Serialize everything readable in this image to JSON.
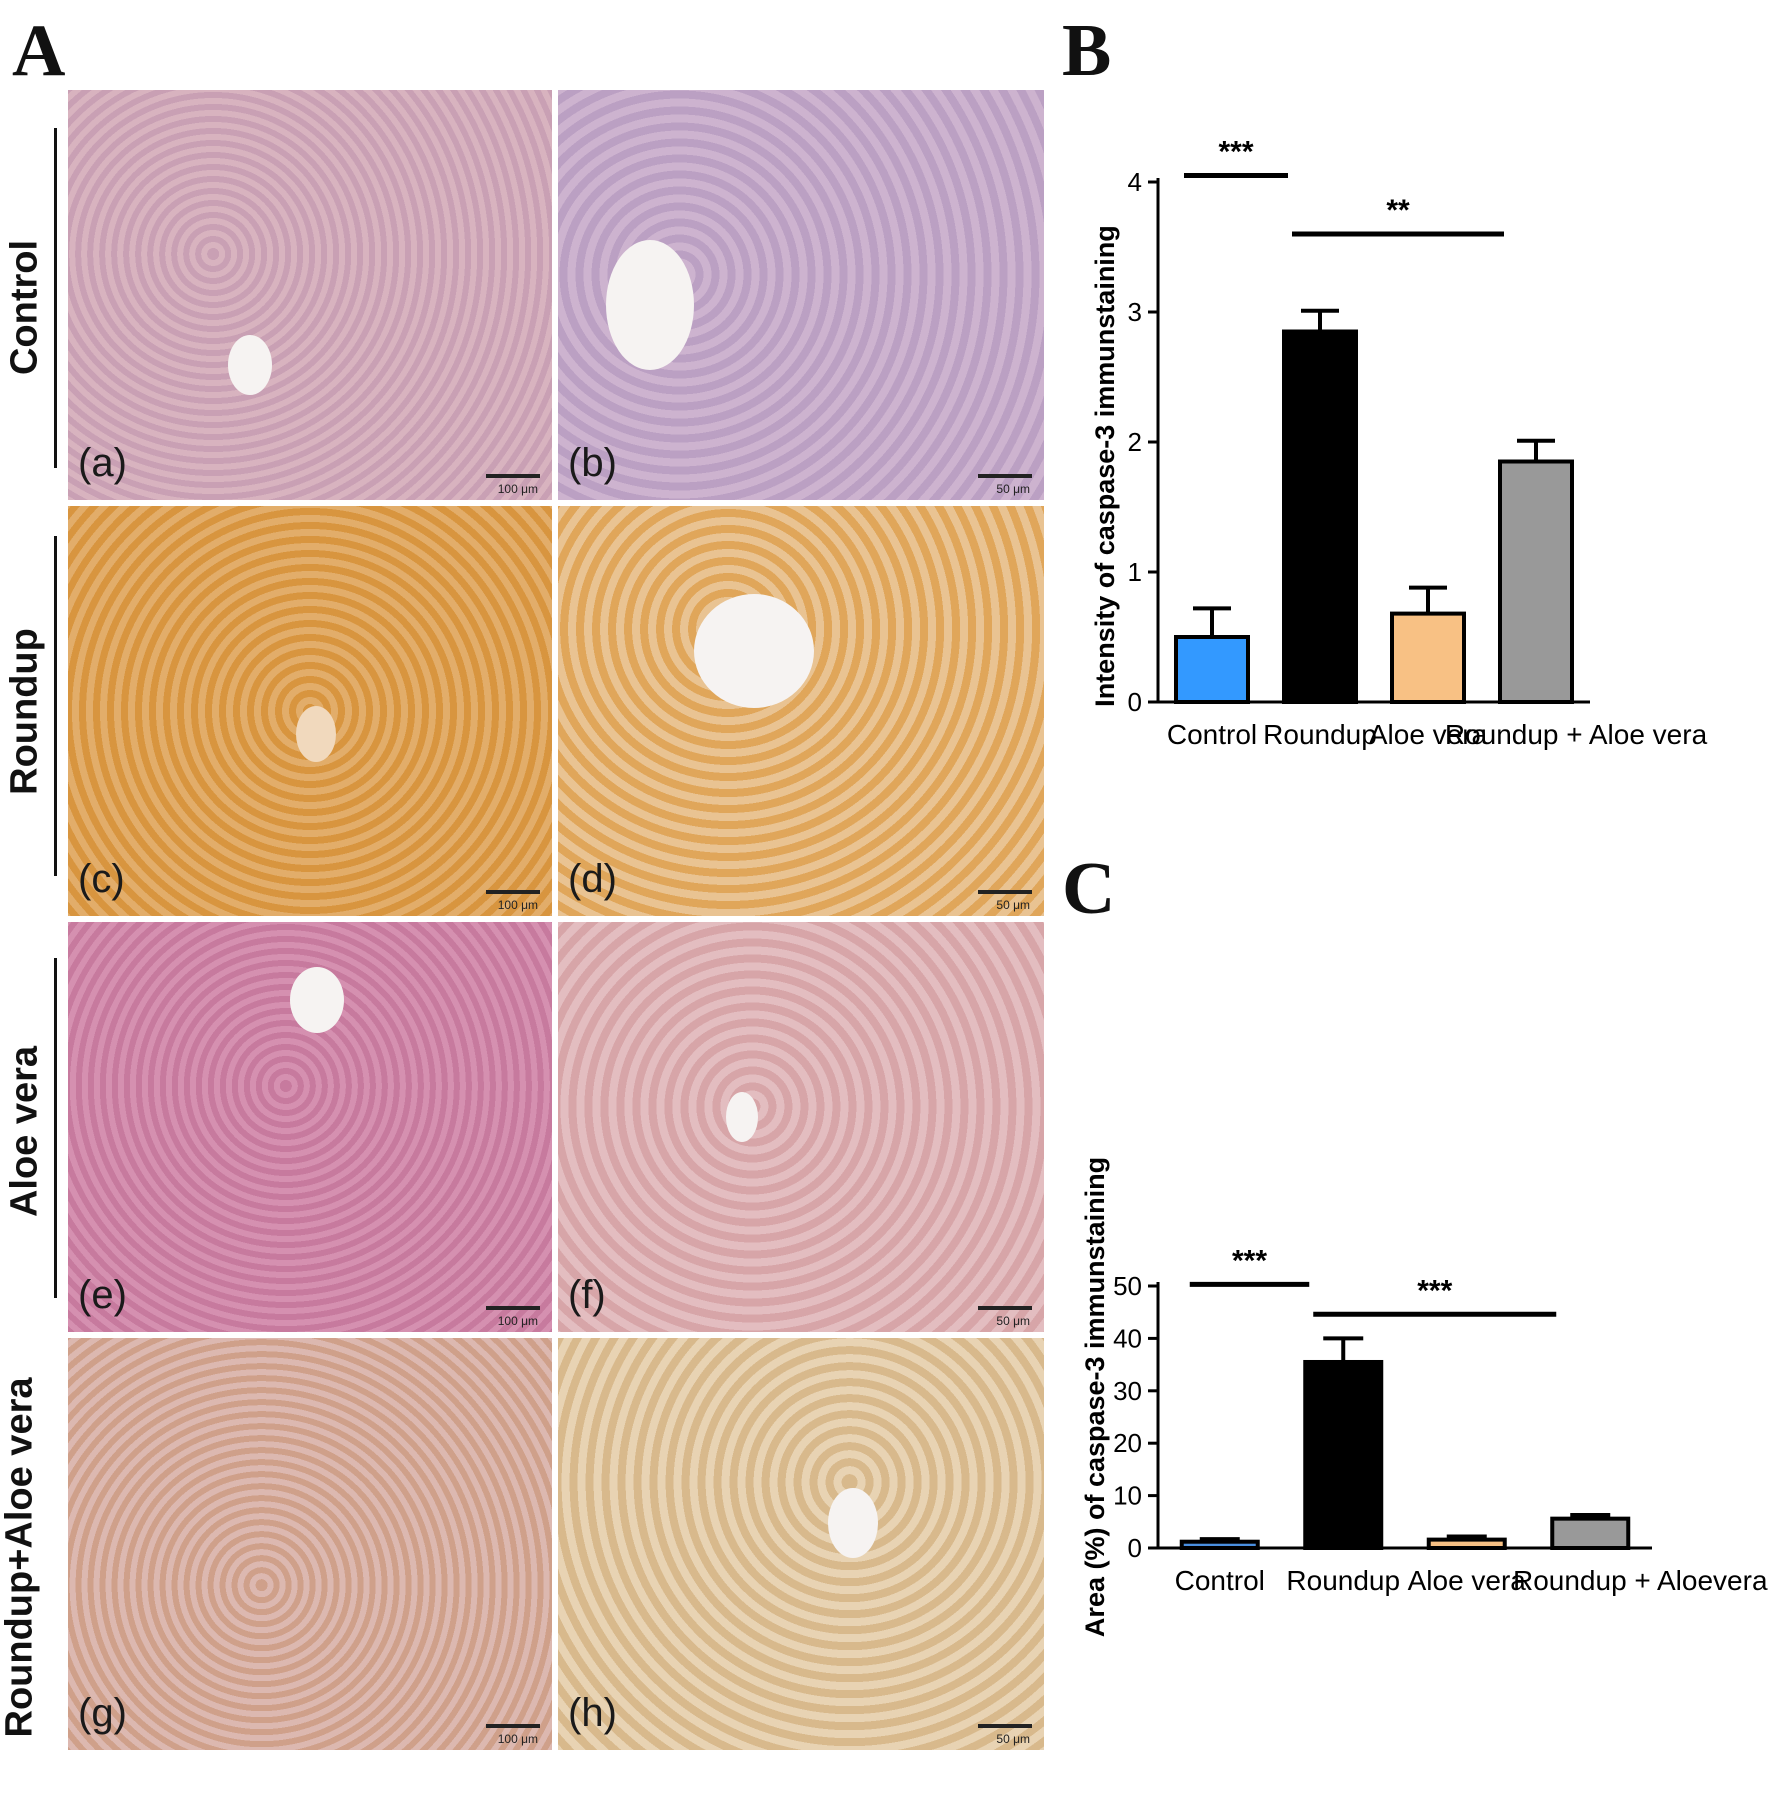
{
  "panel_letters": {
    "a": "A",
    "b": "B",
    "c": "C"
  },
  "micrographs": {
    "rows": [
      {
        "label": "Control",
        "left": {
          "sublabel": "(a)",
          "scale": "100 μm"
        },
        "right": {
          "sublabel": "(b)",
          "scale": "50 μm"
        }
      },
      {
        "label": "Roundup",
        "left": {
          "sublabel": "(c)",
          "scale": "100 μm"
        },
        "right": {
          "sublabel": "(d)",
          "scale": "50 μm"
        }
      },
      {
        "label": "Aloe vera",
        "left": {
          "sublabel": "(e)",
          "scale": "100 μm"
        },
        "right": {
          "sublabel": "(f)",
          "scale": "50 μm"
        }
      },
      {
        "label": "Roundup+Aloe vera",
        "left": {
          "sublabel": "(g)",
          "scale": "100 μm"
        },
        "right": {
          "sublabel": "(h)",
          "scale": "50 μm"
        }
      }
    ]
  },
  "chart_data": [
    {
      "type": "bar",
      "panel": "B",
      "ylabel": "Intensity of caspase-3 immunstaining",
      "xlabel": "",
      "ylim": [
        0,
        4
      ],
      "yticks": [
        "0",
        "1",
        "2",
        "3",
        "4"
      ],
      "categories": [
        "Control",
        "Roundup",
        "Aloe vera",
        "Roundup + Aloe vera"
      ],
      "values": [
        0.5,
        2.85,
        0.68,
        1.85
      ],
      "errors": [
        0.22,
        0.16,
        0.2,
        0.16
      ],
      "colors": [
        "#3399ff",
        "#000000",
        "#f8c184",
        "#999999"
      ],
      "significance": [
        {
          "label": "***",
          "from": 0,
          "to": 1,
          "y": 4.05
        },
        {
          "label": "**",
          "from": 1,
          "to": 3,
          "y": 3.6
        }
      ]
    },
    {
      "type": "bar",
      "panel": "C",
      "ylabel": "Area (%) of caspase-3 immunstaining",
      "xlabel": "",
      "ylim": [
        0,
        50
      ],
      "yticks": [
        "0",
        "10",
        "20",
        "30",
        "40",
        "50"
      ],
      "categories": [
        "Control",
        "Roundup",
        "Aloe vera",
        "Roundup + Aloevera"
      ],
      "values": [
        1.2,
        35.5,
        1.6,
        5.6
      ],
      "errors": [
        0.5,
        4.5,
        0.6,
        0.7
      ],
      "colors": [
        "#4a8fe0",
        "#000000",
        "#f8c184",
        "#999999"
      ],
      "significance": [
        {
          "label": "***",
          "from": 0,
          "to": 1,
          "y": 50.3
        },
        {
          "label": "***",
          "from": 1,
          "to": 3,
          "y": 44.6
        }
      ]
    }
  ]
}
